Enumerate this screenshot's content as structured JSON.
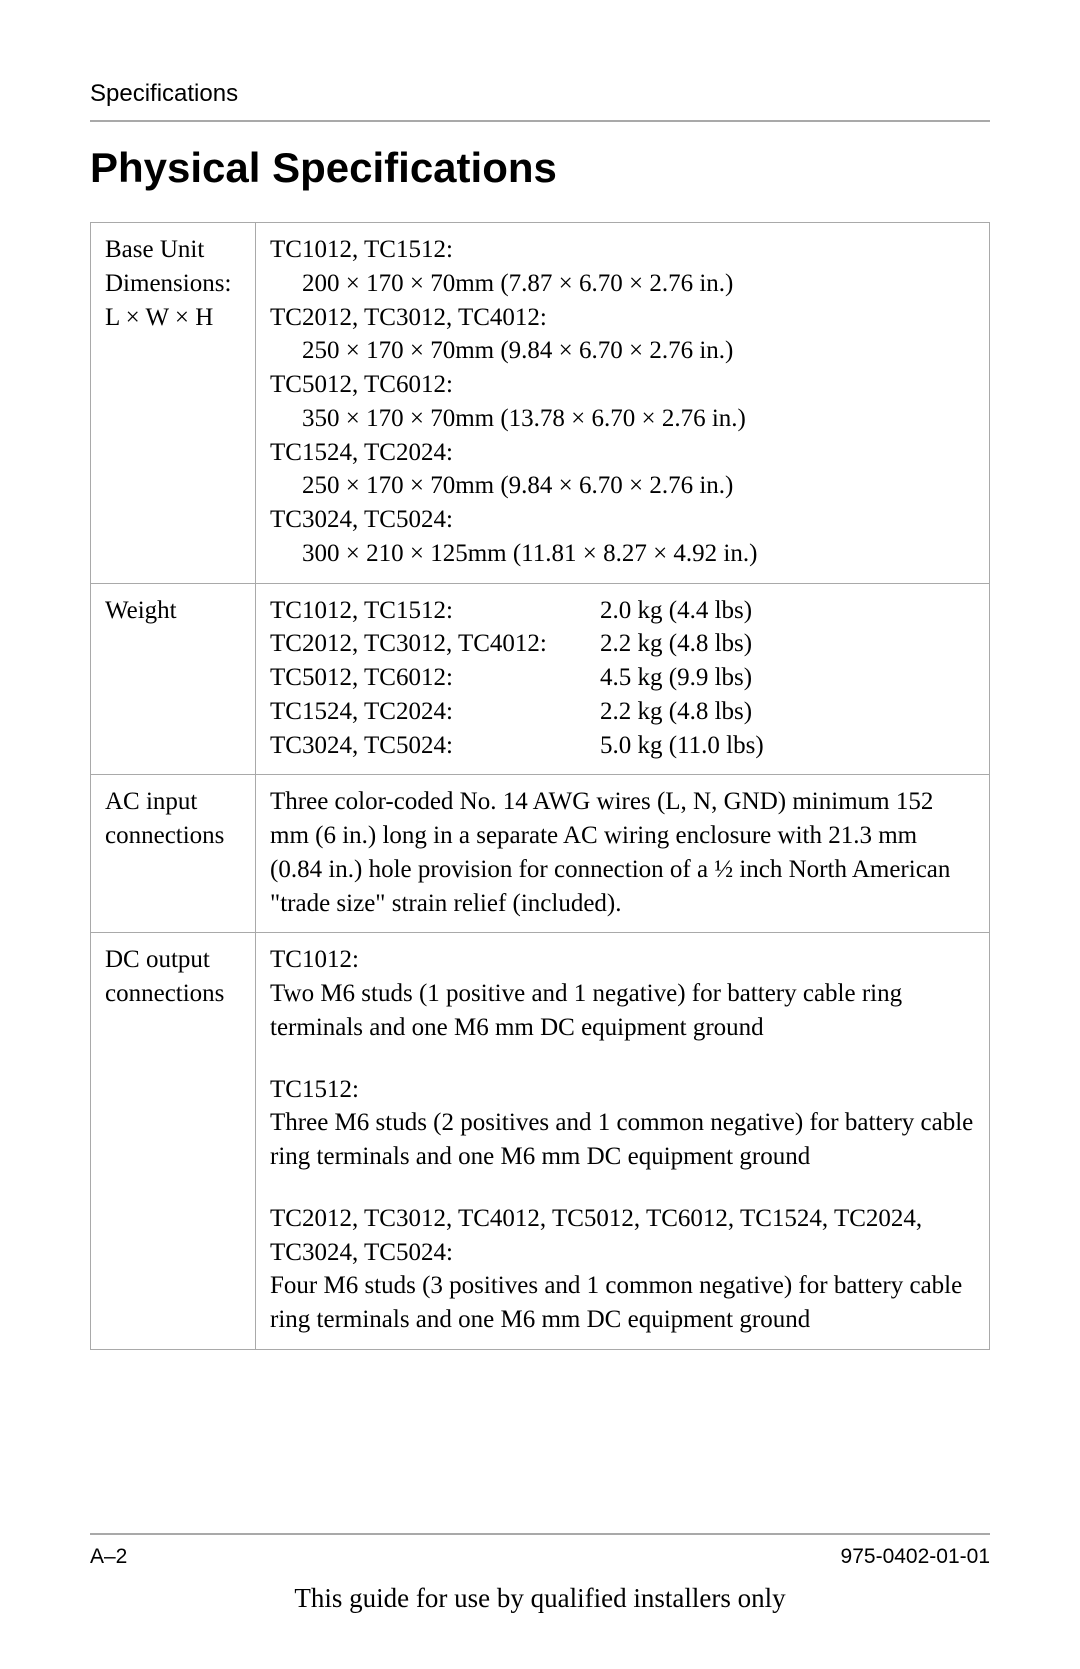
{
  "page": {
    "running_head": "Specifications",
    "title": "Physical Specifications",
    "page_number": "A–2",
    "doc_number": "975-0402-01-01",
    "footer_note": "This guide for use by qualified installers only",
    "colors": {
      "text": "#000000",
      "rule": "#a9a9a9",
      "background": "#ffffff"
    },
    "fonts": {
      "heading_family": "Arial",
      "body_family": "Times New Roman",
      "title_size_pt": 32,
      "body_size_pt": 19,
      "running_head_size_pt": 18,
      "footer_size_pt": 16
    }
  },
  "table": {
    "rows": [
      {
        "label_lines": [
          "Base Unit",
          "Dimensions:",
          "L × W × H"
        ],
        "dimension_groups": [
          {
            "models": "TC1012, TC1512:",
            "value": "200 × 170 × 70mm (7.87 × 6.70 × 2.76 in.)"
          },
          {
            "models": "TC2012, TC3012, TC4012:",
            "value": "250 × 170 × 70mm (9.84 × 6.70 × 2.76 in.)"
          },
          {
            "models": "TC5012, TC6012:",
            "value": "350 × 170 × 70mm (13.78 × 6.70 × 2.76 in.)"
          },
          {
            "models": "TC1524, TC2024:",
            "value": "250 × 170 × 70mm (9.84 × 6.70 × 2.76 in.)"
          },
          {
            "models": "TC3024, TC5024:",
            "value": "300 × 210 × 125mm (11.81 × 8.27 × 4.92 in.)"
          }
        ]
      },
      {
        "label_lines": [
          "Weight"
        ],
        "weights": [
          {
            "models": "TC1012, TC1512:",
            "value": "2.0 kg (4.4 lbs)"
          },
          {
            "models": "TC2012, TC3012, TC4012:",
            "value": "2.2 kg (4.8 lbs)"
          },
          {
            "models": "TC5012, TC6012:",
            "value": "4.5 kg (9.9 lbs)"
          },
          {
            "models": "TC1524, TC2024:",
            "value": "2.2 kg (4.8 lbs)"
          },
          {
            "models": "TC3024, TC5024:",
            "value": "5.0 kg (11.0 lbs)"
          }
        ]
      },
      {
        "label_lines": [
          "AC input",
          "connections"
        ],
        "ac_text_pre": "Three color-coded No. 14 AWG wires (L, N, ",
        "ac_gnd": "GND",
        "ac_text_post": ") minimum 152 mm (6 in.) long in a separate AC wiring enclosure with 21.3 mm (0.84 in.) hole provision for connection of a ½ inch North American \"trade size\" strain relief (included)."
      },
      {
        "label_lines": [
          "DC output",
          "connections"
        ],
        "dc_paras": [
          {
            "head": "TC1012:",
            "body": "Two M6 studs (1 positive and 1 negative) for battery cable ring terminals and one M6 mm DC equipment ground"
          },
          {
            "head": "TC1512:",
            "body": "Three M6 studs (2 positives and 1 common negative) for battery cable ring terminals and one M6 mm DC equipment ground"
          },
          {
            "head": "TC2012, TC3012, TC4012, TC5012, TC6012, TC1524, TC2024, TC3024, TC5024:",
            "body": "Four M6 studs (3 positives and 1 common negative) for battery cable ring terminals and one M6 mm DC equipment ground"
          }
        ]
      }
    ]
  }
}
